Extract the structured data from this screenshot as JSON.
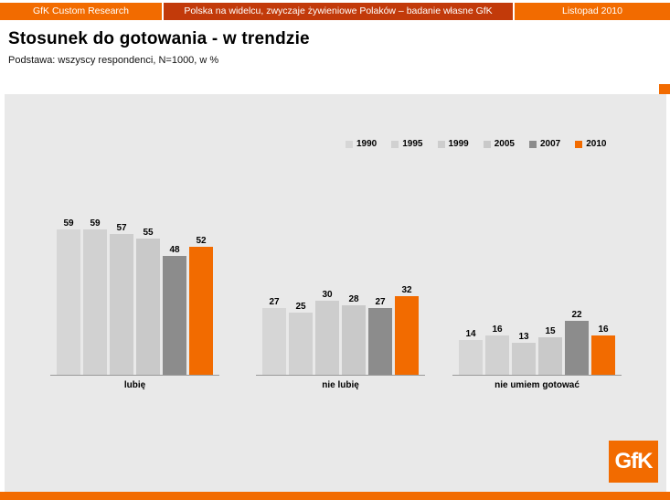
{
  "header": {
    "left": "GfK Custom Research",
    "center": "Polska na widelcu, zwyczaje żywieniowe Polaków – badanie własne GfK",
    "right": "Listopad 2010"
  },
  "title": "Stosunek do gotowania - w trendzie",
  "subtitle": "Podstawa: wszyscy respondenci, N=1000, w %",
  "logo": {
    "text": "GfK"
  },
  "colors": {
    "brand_orange": "#f26b00",
    "header_center_red": "#c23a0a",
    "panel_gray": "#e9e9e9",
    "dark_gray_series": "#8c8c8c",
    "light_gray_series": "#cdcdcd"
  },
  "chart_data": {
    "type": "bar",
    "title": "",
    "xlabel": "",
    "ylabel": "",
    "ylim": [
      0,
      70
    ],
    "grid": false,
    "legend_position": "top-right",
    "value_labels": true,
    "categories": [
      "lubię",
      "nie lubię",
      "nie umiem gotować"
    ],
    "series": [
      {
        "name": "1990",
        "color": "#d6d6d6",
        "values": [
          59,
          27,
          14
        ]
      },
      {
        "name": "1995",
        "color": "#d1d1d1",
        "values": [
          59,
          25,
          16
        ]
      },
      {
        "name": "1999",
        "color": "#cdcdcd",
        "values": [
          57,
          30,
          13
        ]
      },
      {
        "name": "2005",
        "color": "#c9c9c9",
        "values": [
          55,
          28,
          15
        ]
      },
      {
        "name": "2007",
        "color": "#8c8c8c",
        "values": [
          48,
          27,
          22
        ]
      },
      {
        "name": "2010",
        "color": "#f26b00",
        "values": [
          52,
          32,
          16
        ]
      }
    ]
  }
}
